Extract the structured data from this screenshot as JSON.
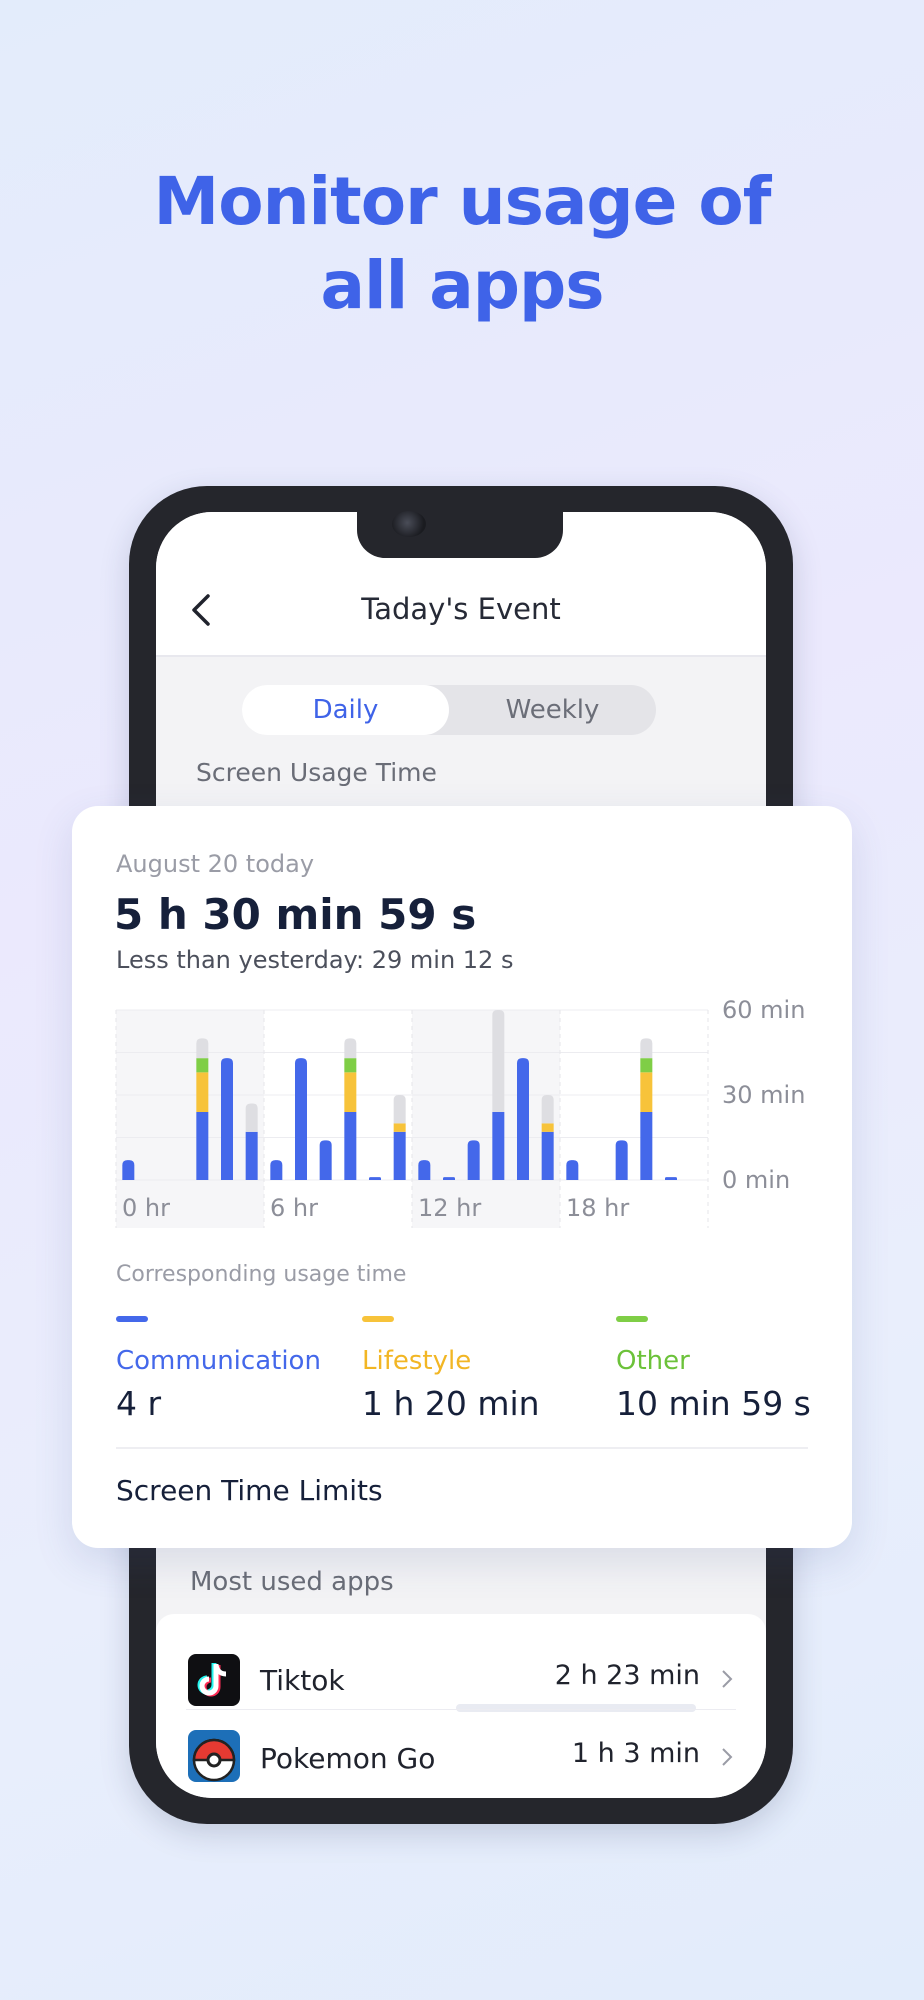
{
  "headline": {
    "line1": "Monitor usage of",
    "line2": "all apps"
  },
  "screen": {
    "title": "Taday's Event",
    "tabs": {
      "daily": "Daily",
      "weekly": "Weekly"
    },
    "section_label": "Screen Usage Time",
    "most_used_label": "Most used apps",
    "apps": [
      {
        "name": "Tiktok",
        "time": "2 h 23 min",
        "icon": "tiktok-icon"
      },
      {
        "name": "Pokemon Go",
        "time": "1 h 3 min",
        "icon": "pokeball-icon"
      }
    ]
  },
  "card": {
    "date": "August 20 today",
    "total": "5 h 30 min 59 s",
    "compare": "Less than yesterday: 29 min 12 s",
    "corresponding_label": "Corresponding usage time",
    "legend": [
      {
        "name": "Communication",
        "value": "4 r",
        "color": "#4468ea"
      },
      {
        "name": "Lifestyle",
        "value": "1 h 20 min",
        "color": "#f7c33a"
      },
      {
        "name": "Other",
        "value": "10 min 59 s",
        "color": "#7fce46"
      }
    ],
    "limits_label": "Screen Time Limits"
  },
  "chart_data": {
    "type": "bar",
    "stacked": true,
    "categories": [
      0,
      1,
      2,
      3,
      4,
      5,
      6,
      7,
      8,
      9,
      10,
      11,
      12,
      13,
      14,
      15,
      16,
      17,
      18,
      19,
      20,
      21,
      22,
      23
    ],
    "x_tick_labels": [
      "0 hr",
      "6 hr",
      "12 hr",
      "18 hr"
    ],
    "y_tick_labels": [
      "60 min",
      "30 min",
      "0 min"
    ],
    "ylim": [
      0,
      60
    ],
    "series": [
      {
        "name": "Communication",
        "color": "#4468ea",
        "values": [
          7,
          0,
          0,
          24,
          43,
          17,
          7,
          43,
          14,
          24,
          1,
          17,
          7,
          1,
          14,
          24,
          43,
          17,
          7,
          0,
          14,
          24,
          1,
          0
        ]
      },
      {
        "name": "Lifestyle",
        "color": "#f7c33a",
        "values": [
          0,
          0,
          0,
          14,
          0,
          0,
          0,
          0,
          0,
          14,
          0,
          3,
          0,
          0,
          0,
          0,
          0,
          3,
          0,
          0,
          0,
          14,
          0,
          0
        ]
      },
      {
        "name": "Other",
        "color": "#7fce46",
        "values": [
          0,
          0,
          0,
          5,
          0,
          0,
          0,
          0,
          0,
          5,
          0,
          0,
          0,
          0,
          0,
          0,
          0,
          0,
          0,
          0,
          0,
          5,
          0,
          0
        ]
      },
      {
        "color": "#dedee2",
        "values": [
          0,
          0,
          0,
          7,
          0,
          10,
          0,
          0,
          0,
          7,
          0,
          10,
          0,
          0,
          0,
          36,
          0,
          10,
          0,
          0,
          0,
          7,
          0,
          0
        ]
      }
    ],
    "grid": true
  }
}
